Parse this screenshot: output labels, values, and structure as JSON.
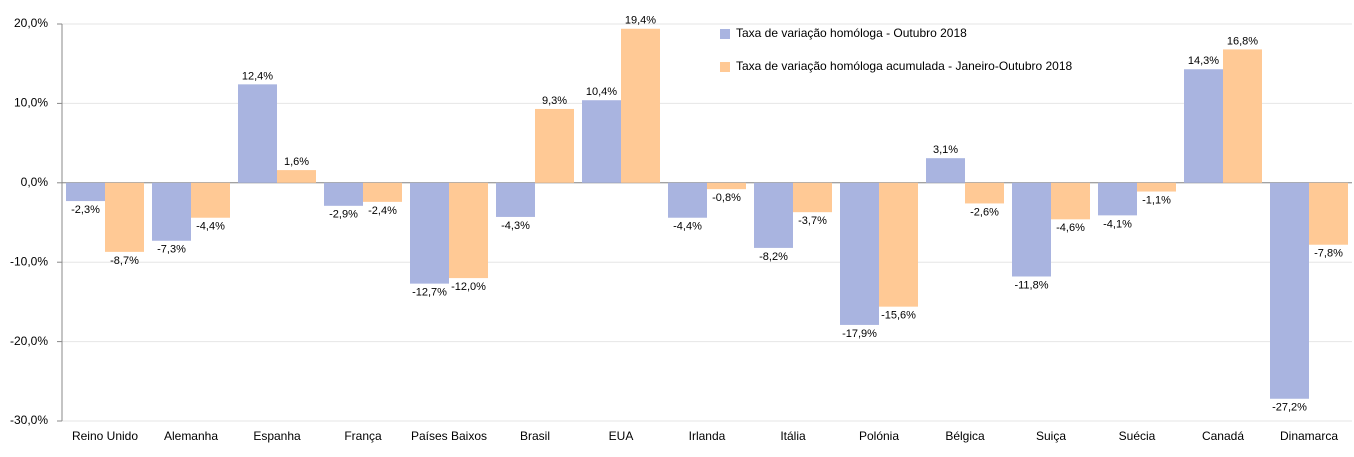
{
  "chart_data": {
    "type": "bar",
    "categories": [
      "Reino Unido",
      "Alemanha",
      "Espanha",
      "França",
      "Países Baixos",
      "Brasil",
      "EUA",
      "Irlanda",
      "Itália",
      "Polónia",
      "Bélgica",
      "Suiça",
      "Suécia",
      "Canadá",
      "Dinamarca"
    ],
    "series": [
      {
        "name": "Taxa de variação homóloga - Outubro 2018",
        "color": "#a9b4e0",
        "values": [
          -2.3,
          -7.3,
          12.4,
          -2.9,
          -12.7,
          -4.3,
          10.4,
          -4.4,
          -8.2,
          -17.9,
          3.1,
          -11.8,
          -4.1,
          14.3,
          -27.2
        ],
        "value_labels": [
          "-2,3%",
          "-7,3%",
          "12,4%",
          "-2,9%",
          "-12,7%",
          "-4,3%",
          "10,4%",
          "-4,4%",
          "-8,2%",
          "-17,9%",
          "3,1%",
          "-11,8%",
          "-4,1%",
          "14,3%",
          "-27,2%"
        ]
      },
      {
        "name": "Taxa de variação homóloga acumulada - Janeiro-Outubro 2018",
        "color": "#ffc995",
        "values": [
          -8.7,
          -4.4,
          1.6,
          -2.4,
          -12.0,
          9.3,
          19.4,
          -0.8,
          -3.7,
          -15.6,
          -2.6,
          -4.6,
          -1.1,
          16.8,
          -7.8
        ],
        "value_labels": [
          "-8,7%",
          "-4,4%",
          "1,6%",
          "-2,4%",
          "-12,0%",
          "9,3%",
          "19,4%",
          "-0,8%",
          "-3,7%",
          "-15,6%",
          "-2,6%",
          "-4,6%",
          "-1,1%",
          "16,8%",
          "-7,8%"
        ]
      }
    ],
    "ylim": [
      -30,
      20
    ],
    "yticks": [
      {
        "value": -30,
        "label": "-30,0%"
      },
      {
        "value": -20,
        "label": "-20,0%"
      },
      {
        "value": -10,
        "label": "-10,0%"
      },
      {
        "value": 0,
        "label": "0,0%"
      },
      {
        "value": 10,
        "label": "10,0%"
      },
      {
        "value": 20,
        "label": "20,0%"
      }
    ],
    "grid": true,
    "legend": "top"
  }
}
